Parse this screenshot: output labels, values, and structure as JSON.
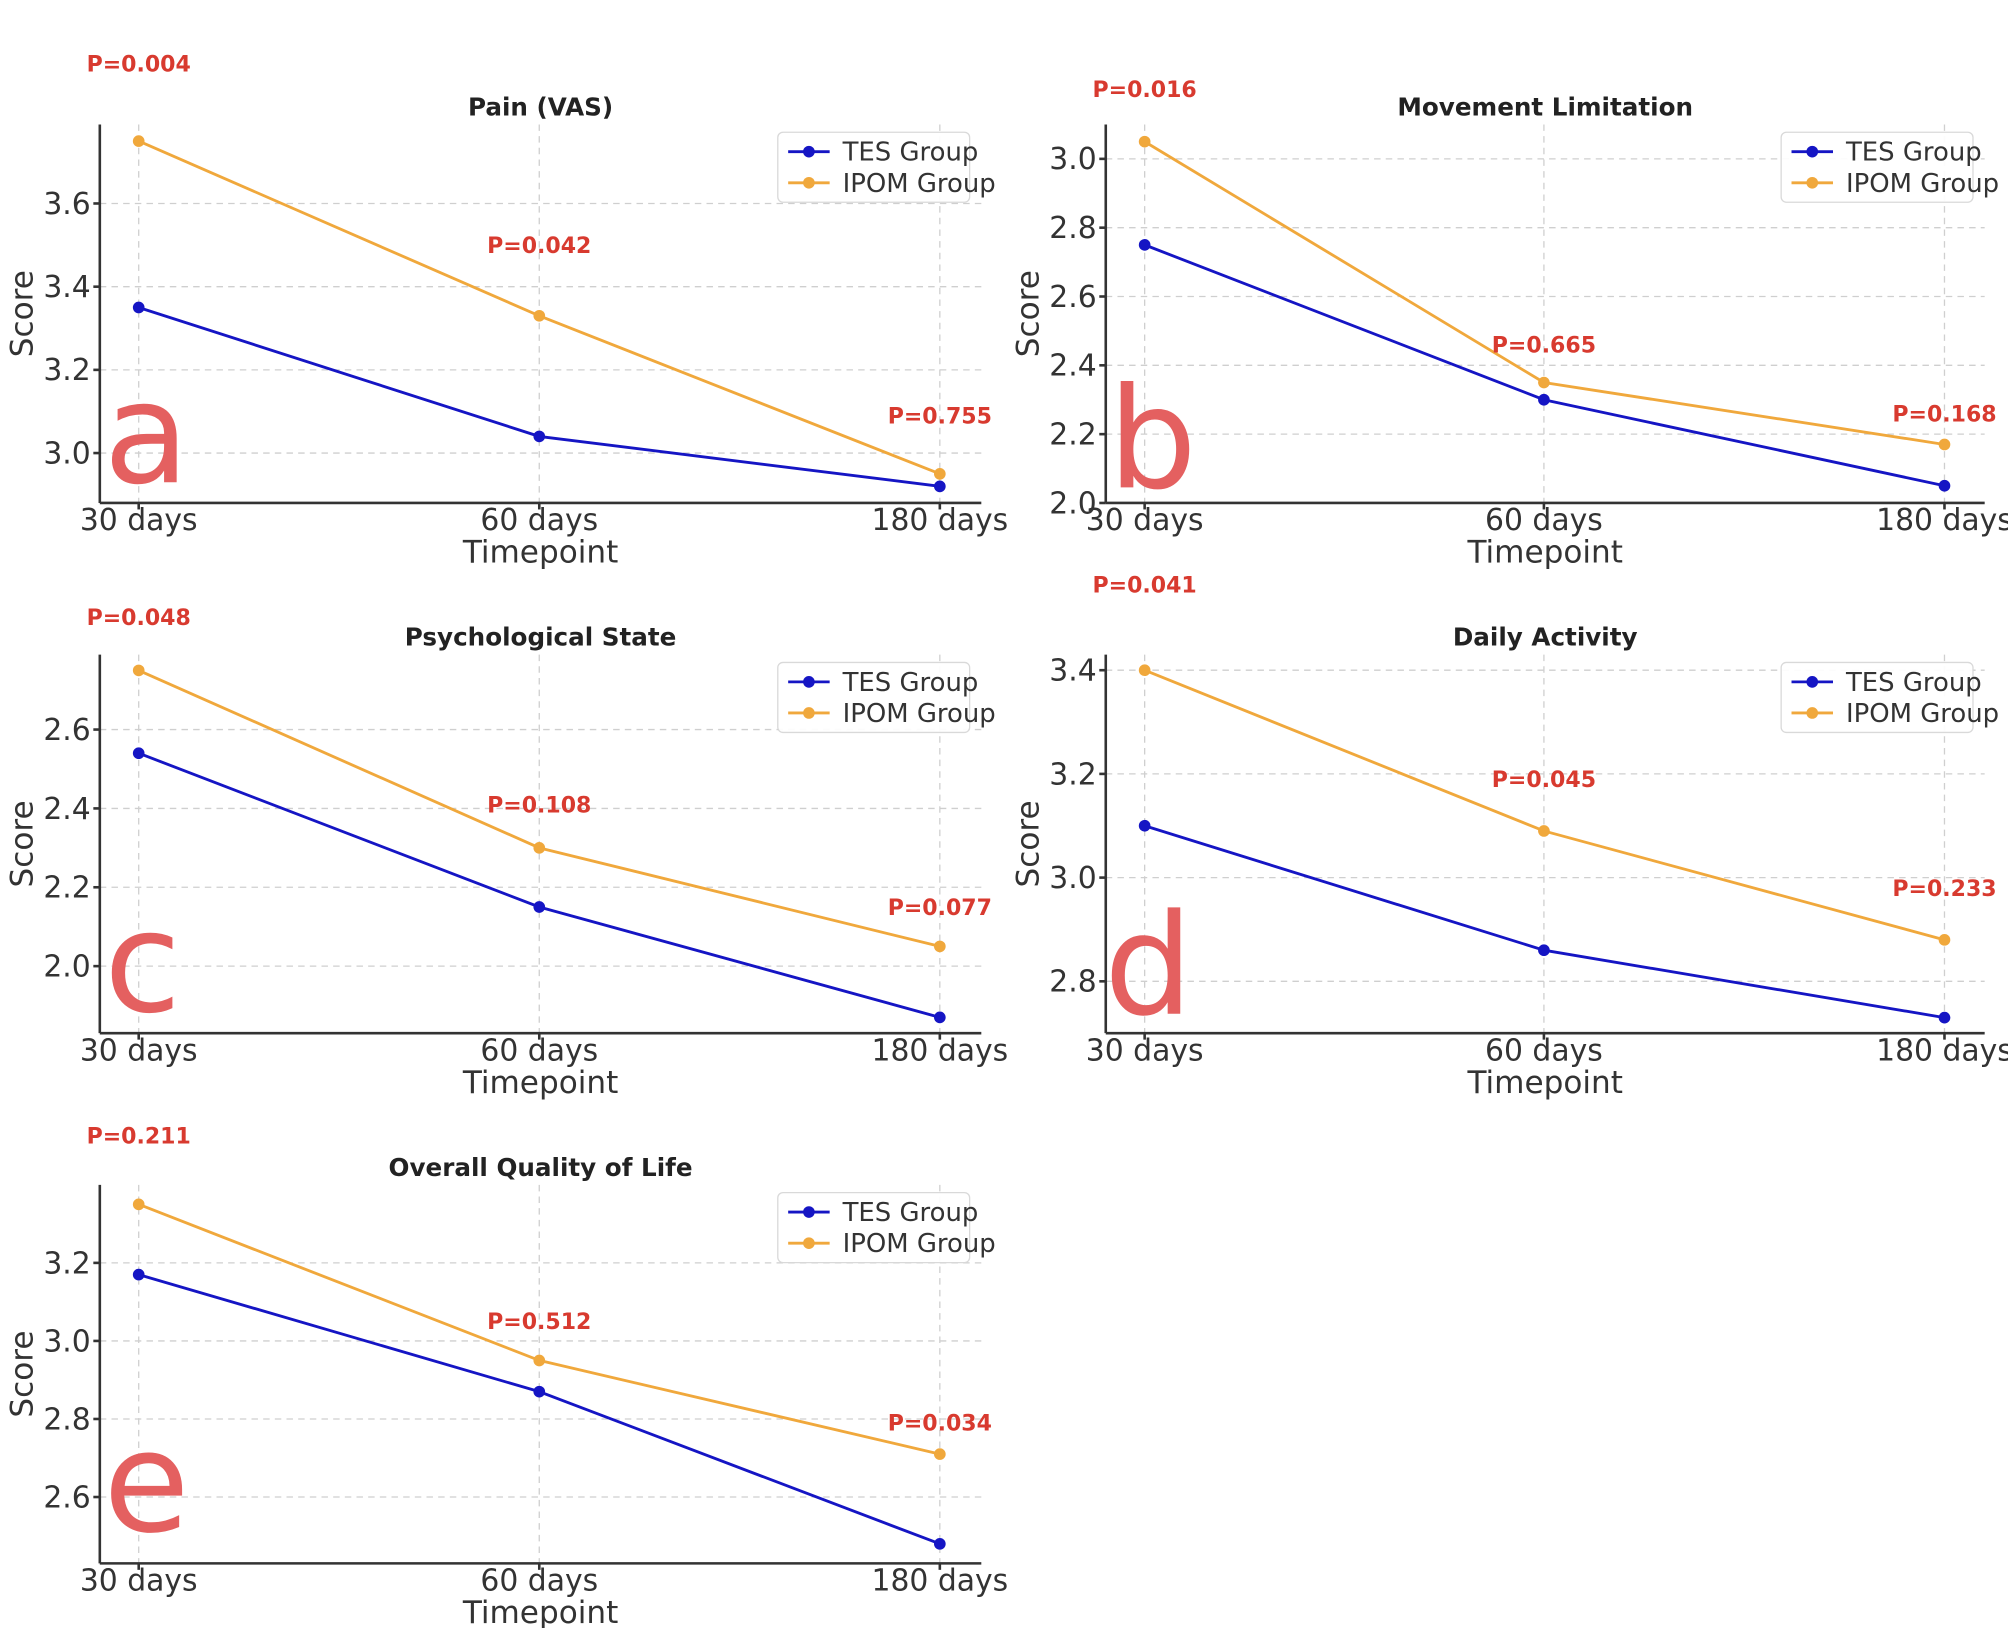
{
  "legend": {
    "series": [
      "TES Group",
      "IPOM Group"
    ]
  },
  "colors": {
    "tes": "#1515c4",
    "ipom": "#f0a83c",
    "pvalue": "#d83a2f",
    "letter": "#e46060"
  },
  "chart_data": [
    {
      "type": "line",
      "panel": "a",
      "title": "Pain (VAS)",
      "xlabel": "Timepoint",
      "ylabel": "Score",
      "categories": [
        "30 days",
        "60 days",
        "180 days"
      ],
      "yticks": [
        "3.0",
        "3.2",
        "3.4",
        "3.6"
      ],
      "ylim": [
        2.88,
        3.79
      ],
      "series": [
        {
          "name": "TES Group",
          "values": [
            3.35,
            3.04,
            2.92
          ]
        },
        {
          "name": "IPOM Group",
          "values": [
            3.75,
            3.33,
            2.95
          ]
        }
      ],
      "p_values": [
        "P=0.004",
        "P=0.042",
        "P=0.755"
      ],
      "p_anchor": [
        3.95,
        3.5,
        3.09
      ]
    },
    {
      "type": "line",
      "panel": "b",
      "title": "Movement Limitation",
      "xlabel": "Timepoint",
      "ylabel": "Score",
      "categories": [
        "30 days",
        "60 days",
        "180 days"
      ],
      "yticks": [
        "2.0",
        "2.2",
        "2.4",
        "2.6",
        "2.8",
        "3.0"
      ],
      "ylim": [
        2.0,
        3.1
      ],
      "series": [
        {
          "name": "TES Group",
          "values": [
            2.75,
            2.3,
            2.05
          ]
        },
        {
          "name": "IPOM Group",
          "values": [
            3.05,
            2.35,
            2.17
          ]
        }
      ],
      "p_values": [
        "P=0.016",
        "P=0.665",
        "P=0.168"
      ],
      "p_anchor": [
        3.21,
        2.46,
        2.26
      ]
    },
    {
      "type": "line",
      "panel": "c",
      "title": "Psychological State",
      "xlabel": "Timepoint",
      "ylabel": "Score",
      "categories": [
        "30 days",
        "60 days",
        "180 days"
      ],
      "yticks": [
        "2.0",
        "2.2",
        "2.4",
        "2.6"
      ],
      "ylim": [
        1.83,
        2.79
      ],
      "series": [
        {
          "name": "TES Group",
          "values": [
            2.54,
            2.15,
            1.87
          ]
        },
        {
          "name": "IPOM Group",
          "values": [
            2.75,
            2.3,
            2.05
          ]
        }
      ],
      "p_values": [
        "P=0.048",
        "P=0.108",
        "P=0.077"
      ],
      "p_anchor": [
        2.85,
        2.41,
        2.15
      ]
    },
    {
      "type": "line",
      "panel": "d",
      "title": "Daily Activity",
      "xlabel": "Timepoint",
      "ylabel": "Score",
      "categories": [
        "30 days",
        "60 days",
        "180 days"
      ],
      "yticks": [
        "2.8",
        "3.0",
        "3.2",
        "3.4"
      ],
      "ylim": [
        2.7,
        3.43
      ],
      "series": [
        {
          "name": "TES Group",
          "values": [
            3.1,
            2.86,
            2.73
          ]
        },
        {
          "name": "IPOM Group",
          "values": [
            3.4,
            3.09,
            2.88
          ]
        }
      ],
      "p_values": [
        "P=0.041",
        "P=0.045",
        "P=0.233"
      ],
      "p_anchor": [
        3.57,
        3.19,
        2.98
      ]
    },
    {
      "type": "line",
      "panel": "e",
      "title": "Overall Quality of Life",
      "xlabel": "Timepoint",
      "ylabel": "Score",
      "categories": [
        "30 days",
        "60 days",
        "180 days"
      ],
      "yticks": [
        "2.6",
        "2.8",
        "3.0",
        "3.2"
      ],
      "ylim": [
        2.43,
        3.4
      ],
      "series": [
        {
          "name": "TES Group",
          "values": [
            3.17,
            2.87,
            2.48
          ]
        },
        {
          "name": "IPOM Group",
          "values": [
            3.35,
            2.95,
            2.71
          ]
        }
      ],
      "p_values": [
        "P=0.211",
        "P=0.512",
        "P=0.034"
      ],
      "p_anchor": [
        3.51,
        3.05,
        2.79
      ]
    }
  ]
}
